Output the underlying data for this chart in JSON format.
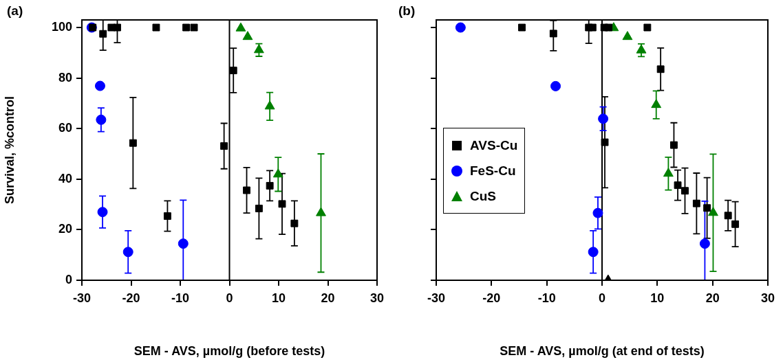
{
  "chart_data": [
    {
      "type": "scatter",
      "title": "(a)",
      "xlabel": "SEM - AVS, µmol/g (before tests)",
      "ylabel": "Survival, %control",
      "xlim": [
        -30,
        30
      ],
      "xticks": [
        -30,
        -20,
        -10,
        0,
        10,
        20,
        30
      ],
      "ylim": [
        0,
        103
      ],
      "yticks": [
        0,
        20,
        40,
        60,
        80,
        100
      ],
      "grid": false,
      "legend": false,
      "ref_lines": [
        {
          "axis": "x",
          "value": 0,
          "color": "#000000"
        }
      ],
      "series": [
        {
          "color": "#000000",
          "marker": "square",
          "x": [
            -27.8,
            -25.7,
            -24.0,
            -22.8,
            -14.9,
            -8.8,
            -7.2,
            -19.6,
            -12.6,
            -1.1,
            0.8,
            3.5,
            6.0,
            8.2,
            10.7,
            13.2
          ],
          "values": [
            100,
            97.5,
            100,
            100,
            100,
            100,
            100,
            54.3,
            25.4,
            53.1,
            83.0,
            35.6,
            28.4,
            37.4,
            30.2,
            22.5
          ],
          "errors": [
            null,
            [
              91,
              103
            ],
            null,
            [
              94,
              103
            ],
            null,
            null,
            null,
            18,
            6,
            9,
            8.8,
            9,
            12,
            6,
            12,
            8.9
          ]
        },
        {
          "color": "#0000ff",
          "marker": "circle",
          "x": [
            -28.0,
            -26.3,
            -26.1,
            -25.8,
            -20.6,
            -9.4
          ],
          "values": [
            100,
            76.9,
            63.5,
            27.0,
            11.2,
            14.5
          ],
          "errors": [
            null,
            null,
            4.7,
            6.3,
            8.4,
            [
              0,
              31.7
            ]
          ]
        },
        {
          "color": "#008000",
          "marker": "triangle",
          "x": [
            2.3,
            3.7,
            6.0,
            8.2,
            9.9,
            18.6
          ],
          "values": [
            99.7,
            96.3,
            91.1,
            68.8,
            41.9,
            26.6
          ],
          "errors": [
            null,
            null,
            2.5,
            5.5,
            6.7,
            23.4
          ]
        }
      ]
    },
    {
      "type": "scatter",
      "title": "(b)",
      "xlabel": "SEM - AVS, µmol/g (at end of tests)",
      "xlim": [
        -30,
        30
      ],
      "xticks": [
        -30,
        -20,
        -10,
        0,
        10,
        20,
        30
      ],
      "ylim": [
        0,
        103
      ],
      "yticks": [
        0,
        20,
        40,
        60,
        80,
        100
      ],
      "tick_labels": "x",
      "grid": false,
      "legend": "left",
      "ref_lines": [
        {
          "axis": "x",
          "value": 0,
          "color": "#000000"
        }
      ],
      "series": [
        {
          "name": "AVS-Cu",
          "color": "#000000",
          "marker": "square",
          "x": [
            -14.5,
            -8.8,
            -2.4,
            -1.7,
            0.4,
            1.2,
            8.2,
            0.5,
            10.6,
            13.0,
            13.7,
            15.0,
            17.1,
            19.0,
            22.8,
            24.1
          ],
          "values": [
            100,
            97.6,
            100,
            100,
            100,
            100,
            100,
            54.6,
            83.5,
            53.5,
            37.6,
            35.4,
            30.4,
            28.6,
            25.6,
            22.2
          ],
          "errors": [
            null,
            [
              90.8,
              102.8
            ],
            [
              93.7,
              103
            ],
            null,
            null,
            null,
            null,
            18,
            8.4,
            8.8,
            6,
            9,
            12,
            12,
            6,
            8.9
          ]
        },
        {
          "name": "FeS-Cu",
          "color": "#0000ff",
          "marker": "circle",
          "x": [
            -25.6,
            -8.4,
            0.2,
            -0.75,
            -1.6,
            18.6
          ],
          "values": [
            100,
            76.8,
            63.9,
            26.6,
            11.2,
            14.5
          ],
          "errors": [
            null,
            null,
            4.7,
            6.3,
            8.4,
            [
              0,
              31.3
            ]
          ]
        },
        {
          "name": "CuS",
          "color": "#008000",
          "marker": "triangle",
          "x": [
            2.1,
            4.6,
            7.1,
            9.8,
            12.0,
            20.1
          ],
          "values": [
            99.8,
            96.3,
            91.0,
            69.4,
            42.2,
            26.7
          ],
          "errors": [
            null,
            null,
            2.5,
            5.5,
            6.5,
            23.2
          ]
        },
        {
          "color": "#000000",
          "marker": "triangle",
          "x": [
            1.1
          ],
          "values": [
            0
          ]
        }
      ]
    }
  ]
}
